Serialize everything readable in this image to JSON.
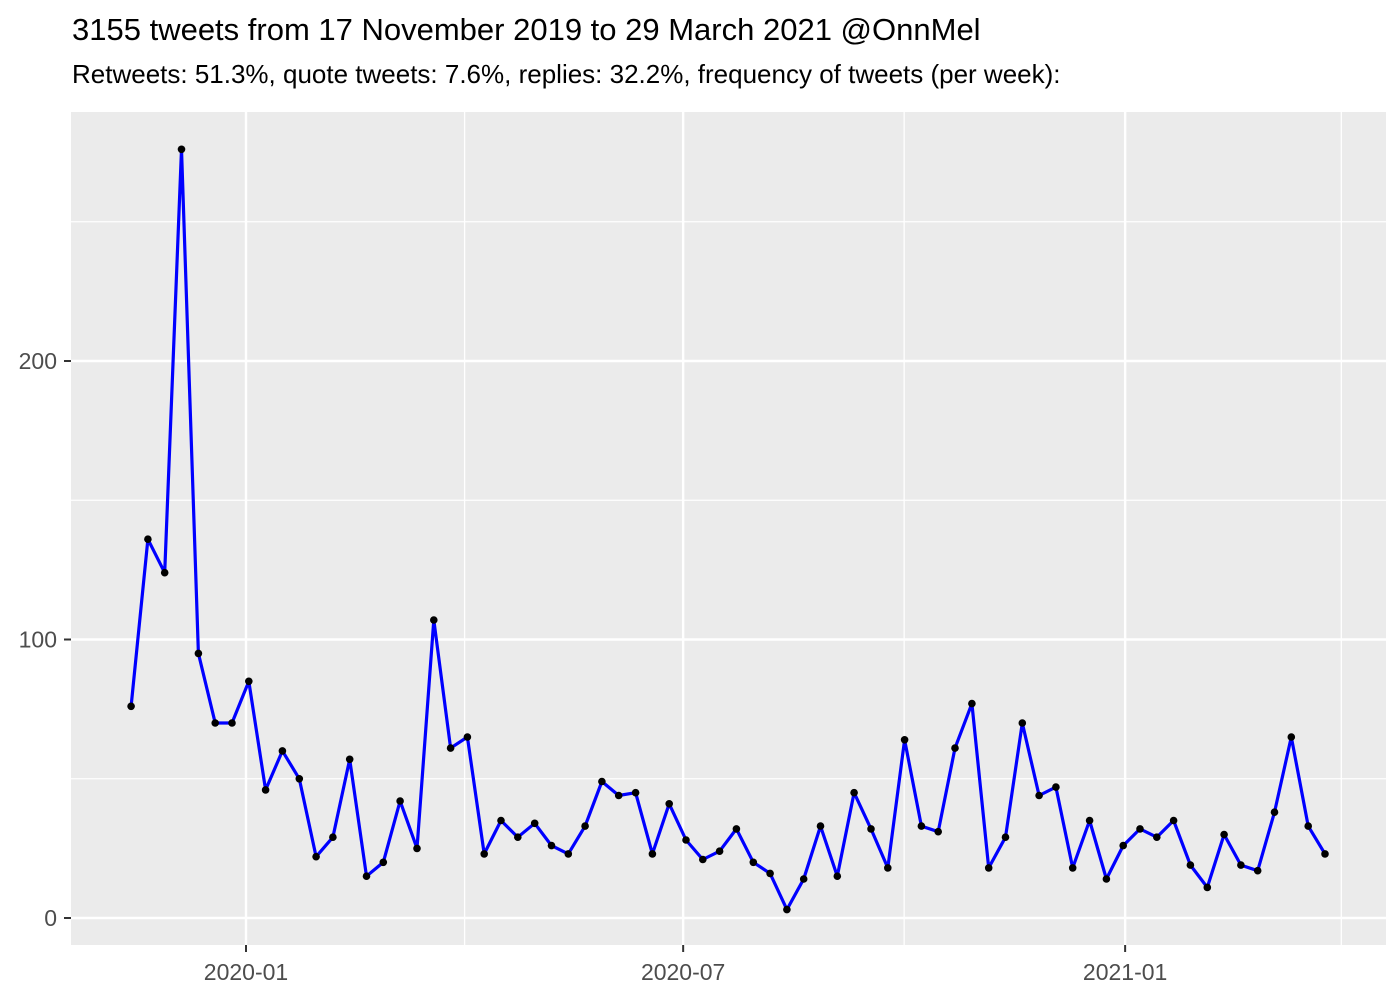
{
  "header": {
    "title": "3155 tweets from 17 November 2019 to 29 March 2021 @OnnMel",
    "subtitle": "Retweets: 51.3%, quote tweets: 7.6%, replies: 32.2%, frequency of tweets (per week):"
  },
  "chart_data": {
    "type": "line",
    "title": "3155 tweets from 17 November 2019 to 29 March 2021 @OnnMel",
    "subtitle": "Retweets: 51.3%, quote tweets: 7.6%, replies: 32.2%, frequency of tweets (per week):",
    "series_name": "tweets per week",
    "total_tweets": 3155,
    "xlabel": "",
    "ylabel": "",
    "x": [
      "2019-11-17",
      "2019-11-24",
      "2019-12-01",
      "2019-12-08",
      "2019-12-15",
      "2019-12-22",
      "2019-12-29",
      "2020-01-05",
      "2020-01-12",
      "2020-01-19",
      "2020-01-26",
      "2020-02-02",
      "2020-02-09",
      "2020-02-16",
      "2020-02-23",
      "2020-03-01",
      "2020-03-08",
      "2020-03-15",
      "2020-03-22",
      "2020-03-29",
      "2020-04-05",
      "2020-04-12",
      "2020-04-19",
      "2020-04-26",
      "2020-05-03",
      "2020-05-10",
      "2020-05-17",
      "2020-05-24",
      "2020-05-31",
      "2020-06-07",
      "2020-06-14",
      "2020-06-21",
      "2020-06-28",
      "2020-07-05",
      "2020-07-12",
      "2020-07-19",
      "2020-07-26",
      "2020-08-02",
      "2020-08-09",
      "2020-08-16",
      "2020-08-23",
      "2020-08-30",
      "2020-09-06",
      "2020-09-13",
      "2020-09-20",
      "2020-09-27",
      "2020-10-04",
      "2020-10-11",
      "2020-10-18",
      "2020-10-25",
      "2020-11-01",
      "2020-11-08",
      "2020-11-15",
      "2020-11-22",
      "2020-11-29",
      "2020-12-06",
      "2020-12-13",
      "2020-12-20",
      "2020-12-27",
      "2021-01-03",
      "2021-01-10",
      "2021-01-17",
      "2021-01-24",
      "2021-01-31",
      "2021-02-07",
      "2021-02-14",
      "2021-02-21",
      "2021-02-28",
      "2021-03-07",
      "2021-03-14",
      "2021-03-21",
      "2021-03-28"
    ],
    "values": [
      76,
      136,
      124,
      276,
      95,
      70,
      70,
      85,
      46,
      60,
      50,
      22,
      29,
      57,
      15,
      20,
      42,
      25,
      107,
      61,
      65,
      23,
      35,
      29,
      34,
      26,
      23,
      33,
      49,
      44,
      45,
      23,
      41,
      28,
      21,
      24,
      32,
      20,
      16,
      3,
      14,
      33,
      15,
      45,
      32,
      18,
      64,
      33,
      31,
      61,
      77,
      18,
      29,
      70,
      44,
      47,
      18,
      35,
      14,
      26,
      32,
      29,
      35,
      19,
      11,
      30,
      19,
      17,
      38,
      65,
      33,
      23
    ],
    "x_ticks": [
      {
        "label": "2020-01",
        "date": "2020-01-01"
      },
      {
        "label": "2020-07",
        "date": "2020-07-01"
      },
      {
        "label": "2021-01",
        "date": "2021-01-01"
      }
    ],
    "x_minor": [
      "2020-04-01",
      "2020-10-01",
      "2021-04-01"
    ],
    "y_ticks": [
      {
        "label": "0",
        "value": 0
      },
      {
        "label": "100",
        "value": 100
      },
      {
        "label": "200",
        "value": 200
      }
    ],
    "y_minor": [
      50,
      150,
      250
    ],
    "ylim": [
      -10,
      289
    ],
    "grid": true,
    "legend_position": "none",
    "colors": {
      "line": "#0000FF",
      "point": "#000000",
      "panel_bg": "#EBEBEB",
      "grid": "#FFFFFF",
      "axis_text": "#4D4D4D",
      "tick_mark": "#333333",
      "title_text": "#000000",
      "page_bg": "#FFFFFF"
    }
  }
}
